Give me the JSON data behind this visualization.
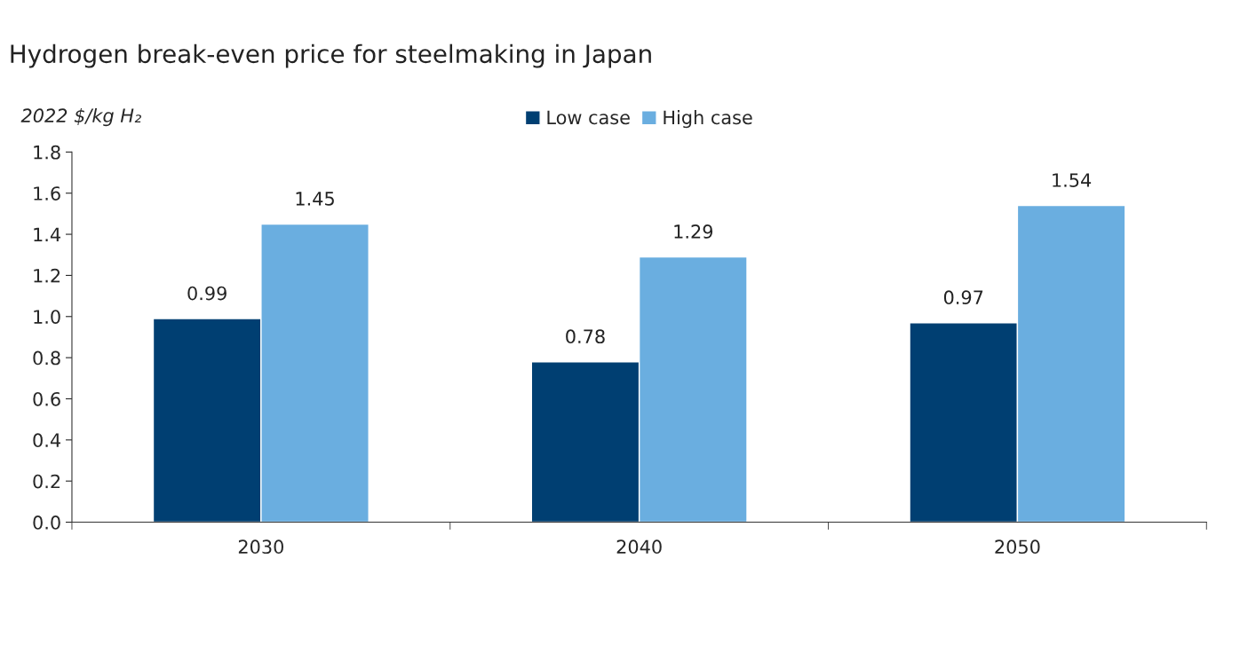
{
  "chart_data": {
    "type": "bar",
    "title": "Hydrogen break-even price for steelmaking in Japan",
    "ylabel": "2022 $/kg H₂",
    "categories": [
      "2030",
      "2040",
      "2050"
    ],
    "series": [
      {
        "name": "Low case",
        "color": "#003f72",
        "values": [
          0.99,
          0.78,
          0.97
        ]
      },
      {
        "name": "High case",
        "color": "#6aaee0",
        "values": [
          1.45,
          1.29,
          1.54
        ]
      }
    ],
    "ylim": [
      0,
      1.8
    ],
    "yticks": [
      {
        "value": 0,
        "label": "0.0"
      },
      {
        "value": 0.2,
        "label": "0.2"
      },
      {
        "value": 0.4,
        "label": "0.4"
      },
      {
        "value": 0.6,
        "label": "0.6"
      },
      {
        "value": 0.8,
        "label": "0.8"
      },
      {
        "value": 1.0,
        "label": "1.0"
      },
      {
        "value": 1.2,
        "label": "1.2"
      },
      {
        "value": 1.4,
        "label": "1.4"
      },
      {
        "value": 1.6,
        "label": "1.6"
      },
      {
        "value": 1.8,
        "label": "1.8"
      }
    ],
    "data_labels": true,
    "grid": false,
    "legend": "top"
  }
}
